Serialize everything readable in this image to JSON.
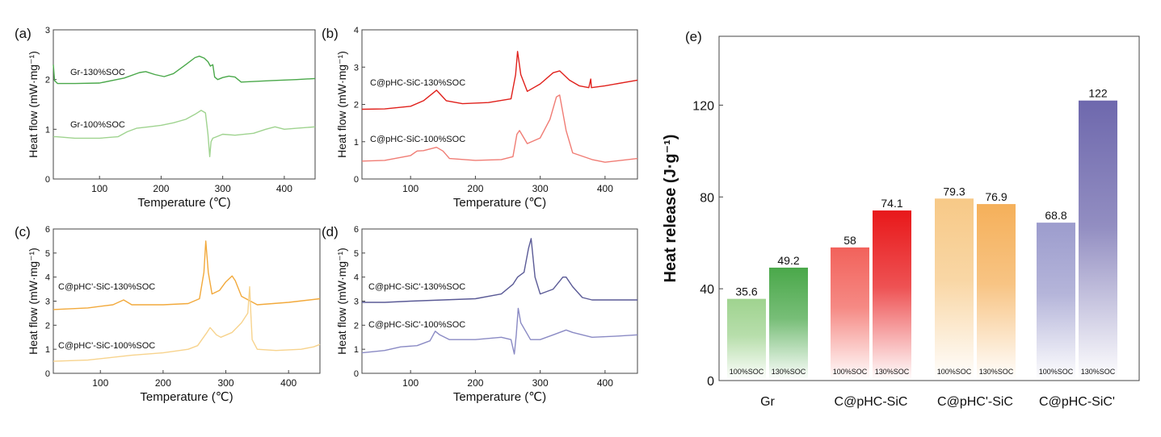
{
  "chart_data": [
    {
      "panel": "(a)",
      "type": "line",
      "xlabel": "Temperature (℃)",
      "ylabel": "Heat flow (mW·mg⁻¹)",
      "xlim": [
        25,
        450
      ],
      "ylim": [
        0,
        3
      ],
      "xticks": [
        100,
        200,
        300,
        400
      ],
      "yticks": [
        0,
        1,
        2,
        3
      ],
      "series": [
        {
          "name": "Gr-130%SOC",
          "color": "#4aa84a",
          "x": [
            25,
            27,
            32,
            60,
            100,
            140,
            165,
            175,
            190,
            205,
            220,
            240,
            255,
            262,
            270,
            276,
            280,
            284,
            287,
            292,
            300,
            310,
            320,
            330,
            350,
            380,
            420,
            450
          ],
          "y": [
            2.3,
            1.98,
            1.92,
            1.92,
            1.93,
            2.03,
            2.14,
            2.16,
            2.1,
            2.06,
            2.12,
            2.3,
            2.44,
            2.47,
            2.43,
            2.36,
            2.27,
            2.3,
            2.05,
            2.0,
            2.04,
            2.07,
            2.05,
            1.95,
            1.96,
            1.98,
            2.0,
            2.02
          ]
        },
        {
          "name": "Gr-100%SOC",
          "color": "#9fd38f",
          "x": [
            25,
            30,
            60,
            100,
            130,
            145,
            160,
            180,
            200,
            220,
            240,
            255,
            265,
            272,
            276,
            279,
            281,
            284,
            290,
            300,
            320,
            350,
            370,
            385,
            400,
            420,
            450
          ],
          "y": [
            0.85,
            0.85,
            0.82,
            0.82,
            0.85,
            0.95,
            1.02,
            1.05,
            1.08,
            1.13,
            1.2,
            1.3,
            1.38,
            1.33,
            0.9,
            0.45,
            0.75,
            0.82,
            0.85,
            0.9,
            0.88,
            0.92,
            1.0,
            1.05,
            1.0,
            1.02,
            1.05
          ]
        }
      ]
    },
    {
      "panel": "(b)",
      "type": "line",
      "xlabel": "Temperature (℃)",
      "ylabel": "Heat flow (mW·mg⁻¹)",
      "xlim": [
        25,
        450
      ],
      "ylim": [
        0,
        4
      ],
      "xticks": [
        100,
        200,
        300,
        400
      ],
      "yticks": [
        0,
        1,
        2,
        3,
        4
      ],
      "series": [
        {
          "name": "C@pHC-SiC-130%SOC",
          "color": "#e0201b",
          "x": [
            25,
            60,
            100,
            120,
            140,
            155,
            180,
            220,
            255,
            262,
            265,
            270,
            280,
            300,
            320,
            330,
            345,
            360,
            375,
            378,
            379,
            400,
            450
          ],
          "y": [
            1.87,
            1.88,
            1.95,
            2.1,
            2.38,
            2.1,
            2.02,
            2.05,
            2.15,
            2.8,
            3.42,
            2.8,
            2.35,
            2.55,
            2.85,
            2.9,
            2.65,
            2.5,
            2.45,
            2.68,
            2.45,
            2.5,
            2.65
          ]
        },
        {
          "name": "C@pHC-SiC-100%SOC",
          "color": "#f07c74",
          "x": [
            25,
            60,
            100,
            110,
            120,
            140,
            150,
            160,
            200,
            240,
            258,
            264,
            268,
            280,
            300,
            315,
            325,
            330,
            340,
            350,
            380,
            400,
            450
          ],
          "y": [
            0.48,
            0.5,
            0.63,
            0.75,
            0.76,
            0.85,
            0.75,
            0.55,
            0.5,
            0.52,
            0.6,
            1.2,
            1.3,
            0.95,
            1.1,
            1.6,
            2.2,
            2.25,
            1.3,
            0.7,
            0.52,
            0.45,
            0.55
          ]
        }
      ]
    },
    {
      "panel": "(c)",
      "type": "line",
      "xlabel": "Temperature (℃)",
      "ylabel": "Heat flow (mW·mg⁻¹)",
      "xlim": [
        25,
        450
      ],
      "ylim": [
        0,
        6
      ],
      "xticks": [
        100,
        200,
        300,
        400
      ],
      "yticks": [
        0,
        1,
        2,
        3,
        4,
        5,
        6
      ],
      "series": [
        {
          "name": "C@pHC'-SiC-130%SOC",
          "color": "#f2a93b",
          "x": [
            25,
            80,
            120,
            137,
            150,
            200,
            240,
            258,
            265,
            268,
            272,
            278,
            290,
            300,
            310,
            315,
            325,
            350,
            400,
            450
          ],
          "y": [
            2.65,
            2.72,
            2.85,
            3.05,
            2.85,
            2.85,
            2.9,
            3.1,
            4.2,
            5.5,
            4.2,
            3.3,
            3.45,
            3.8,
            4.05,
            3.85,
            3.2,
            2.85,
            2.95,
            3.1
          ]
        },
        {
          "name": "C@pHC'-SiC-100%SOC",
          "color": "#f7d38d",
          "x": [
            25,
            80,
            150,
            200,
            240,
            255,
            270,
            275,
            285,
            292,
            310,
            325,
            335,
            338,
            340,
            342,
            350,
            380,
            420,
            440,
            450
          ],
          "y": [
            0.5,
            0.55,
            0.75,
            0.85,
            1.0,
            1.15,
            1.7,
            1.9,
            1.6,
            1.5,
            1.7,
            2.1,
            2.5,
            3.6,
            2.4,
            1.4,
            1.0,
            0.95,
            1.0,
            1.1,
            1.2
          ]
        }
      ]
    },
    {
      "panel": "(d)",
      "type": "line",
      "xlabel": "Temperature (℃)",
      "ylabel": "Heat flow (mW·mg⁻¹)",
      "xlim": [
        25,
        450
      ],
      "ylim": [
        0,
        6
      ],
      "xticks": [
        100,
        200,
        300,
        400
      ],
      "yticks": [
        0,
        1,
        2,
        3,
        4,
        5,
        6
      ],
      "series": [
        {
          "name": "C@pHC-SiC'-130%SOC",
          "color": "#5a5a96",
          "x": [
            25,
            60,
            100,
            150,
            200,
            240,
            258,
            265,
            275,
            282,
            286,
            292,
            300,
            320,
            335,
            340,
            350,
            365,
            380,
            420,
            450
          ],
          "y": [
            2.95,
            2.95,
            3.0,
            3.05,
            3.1,
            3.3,
            3.7,
            4.0,
            4.2,
            5.2,
            5.6,
            4.0,
            3.3,
            3.5,
            4.0,
            4.0,
            3.6,
            3.15,
            3.05,
            3.05,
            3.05
          ]
        },
        {
          "name": "C@pHC-SiC'-100%SOC",
          "color": "#8a8ac4",
          "x": [
            25,
            60,
            85,
            110,
            130,
            138,
            145,
            160,
            200,
            240,
            255,
            260,
            263,
            266,
            270,
            285,
            300,
            320,
            340,
            350,
            380,
            420,
            450
          ],
          "y": [
            0.85,
            0.95,
            1.1,
            1.15,
            1.35,
            1.75,
            1.6,
            1.4,
            1.4,
            1.5,
            1.4,
            0.8,
            1.6,
            2.7,
            2.1,
            1.4,
            1.4,
            1.6,
            1.8,
            1.7,
            1.5,
            1.55,
            1.6
          ]
        }
      ]
    },
    {
      "panel": "(e)",
      "type": "bar",
      "ylabel": "Heat release (J·g⁻¹)",
      "ylim": [
        0,
        150
      ],
      "yticks": [
        0,
        40,
        80,
        120
      ],
      "categories": [
        "Gr",
        "C@pHC-SiC",
        "C@pHC'-SiC",
        "C@pHC-SiC'"
      ],
      "sublabels": [
        "100%SOC",
        "130%SOC"
      ],
      "series": [
        {
          "name": "100%SOC",
          "values": [
            35.6,
            58,
            79.3,
            68.8
          ],
          "value_labels": [
            "35.6",
            "58",
            "79.3",
            "68.8"
          ]
        },
        {
          "name": "130%SOC",
          "values": [
            49.2,
            74.1,
            76.9,
            122
          ],
          "value_labels": [
            "49.2",
            "74.1",
            "76.9",
            "122"
          ]
        }
      ],
      "group_colors": [
        [
          "#9fd38f",
          "#4aa84a"
        ],
        [
          "#f2625b",
          "#e8181a"
        ],
        [
          "#f7c987",
          "#f5b05a"
        ],
        [
          "#9c9ccd",
          "#6e68ad"
        ]
      ],
      "label_colors": [
        "#4aa84a",
        "#d9201a",
        "#d99a3c",
        "#6e68ad"
      ]
    }
  ]
}
